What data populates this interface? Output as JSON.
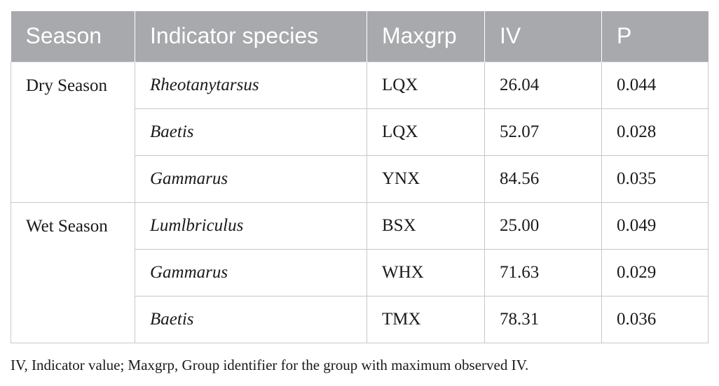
{
  "table": {
    "headers": [
      "Season",
      "Indicator species",
      "Maxgrp",
      "IV",
      "P"
    ],
    "groups": [
      {
        "season": "Dry Season",
        "rows": [
          {
            "species": "Rheotanytarsus",
            "maxgrp": "LQX",
            "iv": "26.04",
            "p": "0.044"
          },
          {
            "species": "Baetis",
            "maxgrp": "LQX",
            "iv": "52.07",
            "p": "0.028"
          },
          {
            "species": "Gammarus",
            "maxgrp": "YNX",
            "iv": "84.56",
            "p": "0.035"
          }
        ]
      },
      {
        "season": "Wet Season",
        "rows": [
          {
            "species": "Lumlbriculus",
            "maxgrp": "BSX",
            "iv": "25.00",
            "p": "0.049"
          },
          {
            "species": "Gammarus",
            "maxgrp": "WHX",
            "iv": "71.63",
            "p": "0.029"
          },
          {
            "species": "Baetis",
            "maxgrp": "TMX",
            "iv": "78.31",
            "p": "0.036"
          }
        ]
      }
    ]
  },
  "footnote": "IV, Indicator value; Maxgrp, Group identifier for the group with maximum observed IV.",
  "colors": {
    "header_background": "#a7a9ac",
    "header_text": "#ffffff",
    "grid_line": "#c8c8c8"
  }
}
